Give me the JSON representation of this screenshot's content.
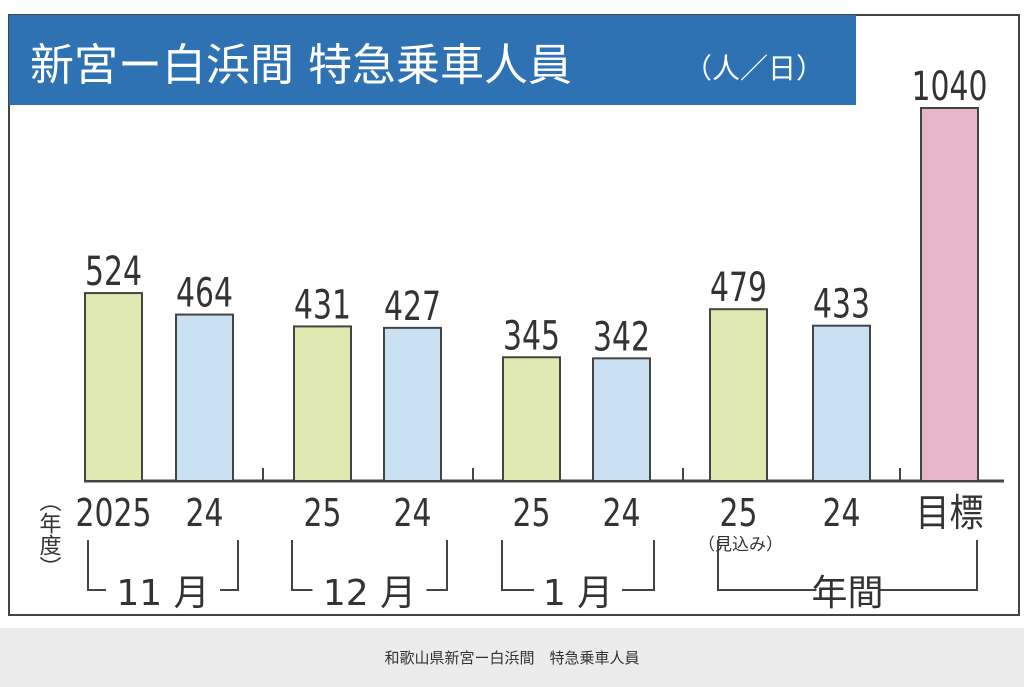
{
  "chart_data": {
    "type": "bar",
    "title": "新宮ー白浜間 特急乗車人員",
    "unit": "（人／日）",
    "year_axis_label": "（年度）",
    "categories": [
      "2025",
      "24",
      "25",
      "24",
      "25",
      "24",
      "25",
      "24",
      "目標"
    ],
    "category_notes": [
      "",
      "",
      "",
      "",
      "",
      "",
      "（見込み）",
      "",
      ""
    ],
    "groups": [
      {
        "label": "11 月",
        "members": [
          0,
          1
        ]
      },
      {
        "label": "12 月",
        "members": [
          2,
          3
        ]
      },
      {
        "label": "1 月",
        "members": [
          4,
          5
        ]
      },
      {
        "label": "年間",
        "members": [
          6,
          7,
          8
        ]
      }
    ],
    "values": [
      524,
      464,
      431,
      427,
      345,
      342,
      479,
      433,
      1040
    ],
    "value_labels": [
      "524",
      "464",
      "431",
      "427",
      "345",
      "342",
      "479",
      "433",
      "1040"
    ],
    "bar_colors": [
      "#e1e9b3",
      "#c9e1f3",
      "#e1e9b3",
      "#c9e1f3",
      "#e1e9b3",
      "#c9e1f3",
      "#e1e9b3",
      "#c9e1f3",
      "#e8b6c9"
    ],
    "ylim": [
      0,
      1040
    ],
    "grid": false,
    "title_color": "#2f72b4"
  },
  "caption": "和歌山県新宮ー白浜間　特急乗車人員"
}
